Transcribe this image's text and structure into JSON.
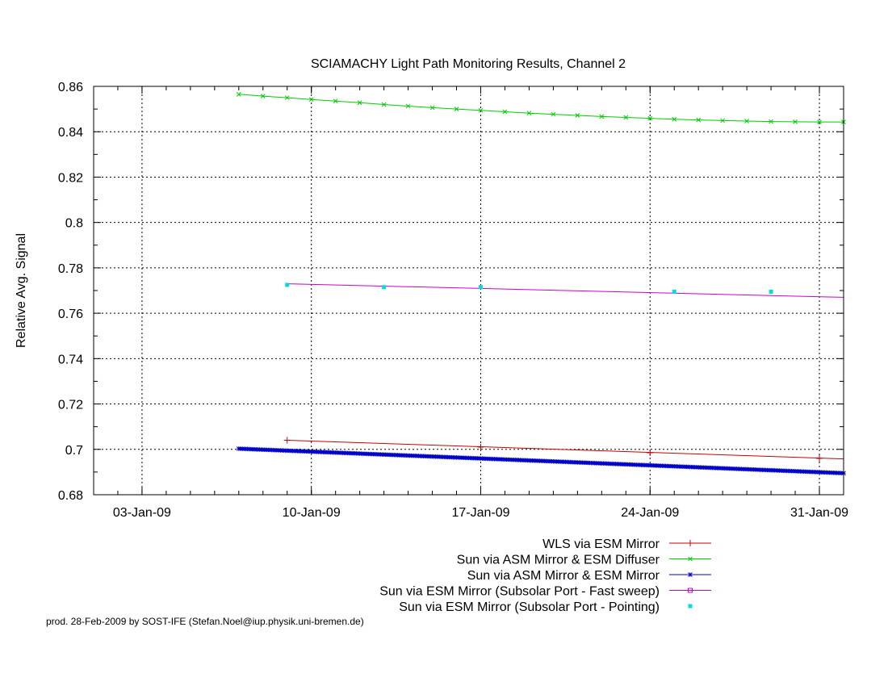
{
  "chart_data": {
    "type": "line",
    "title": "SCIAMACHY Light Path Monitoring Results, Channel 2",
    "xlabel": "",
    "ylabel": "Relative Avg. Signal",
    "xlim": [
      "2009-01-01",
      "2009-02-01"
    ],
    "ylim": [
      0.68,
      0.86
    ],
    "x_ticks": [
      {
        "date": "2009-01-03",
        "label": "03-Jan-09"
      },
      {
        "date": "2009-01-10",
        "label": "10-Jan-09"
      },
      {
        "date": "2009-01-17",
        "label": "17-Jan-09"
      },
      {
        "date": "2009-01-24",
        "label": "24-Jan-09"
      },
      {
        "date": "2009-01-31",
        "label": "31-Jan-09"
      }
    ],
    "y_ticks": [
      0.68,
      0.7,
      0.72,
      0.74,
      0.76,
      0.78,
      0.8,
      0.82,
      0.84,
      0.86
    ],
    "y_tick_labels": [
      "0.68",
      "0.7",
      "0.72",
      "0.74",
      "0.76",
      "0.78",
      "0.8",
      "0.82",
      "0.84",
      "0.86"
    ],
    "grid": true,
    "legend_position": "bottom-right",
    "series": [
      {
        "name": "WLS via ESM Mirror",
        "color": "#cc0000",
        "style": "line-with-plus-markers",
        "x": [
          "2009-01-09",
          "2009-01-17",
          "2009-01-24",
          "2009-01-31"
        ],
        "y": [
          0.704,
          0.701,
          0.6985,
          0.696
        ],
        "fit_line": {
          "x": [
            "2009-01-09",
            "2009-02-01"
          ],
          "y": [
            0.704,
            0.6958
          ]
        }
      },
      {
        "name": "Sun via ASM Mirror & ESM Diffuser",
        "color": "#00cc00",
        "style": "line-with-x-markers",
        "x": [
          "2009-01-07",
          "2009-01-08",
          "2009-01-09",
          "2009-01-10",
          "2009-01-11",
          "2009-01-12",
          "2009-01-13",
          "2009-01-14",
          "2009-01-15",
          "2009-01-16",
          "2009-01-17",
          "2009-01-18",
          "2009-01-19",
          "2009-01-20",
          "2009-01-21",
          "2009-01-22",
          "2009-01-23",
          "2009-01-24",
          "2009-01-25",
          "2009-01-26",
          "2009-01-27",
          "2009-01-28",
          "2009-01-29",
          "2009-01-30",
          "2009-01-31",
          "2009-02-01"
        ],
        "y": [
          0.8565,
          0.8557,
          0.855,
          0.8542,
          0.8535,
          0.8528,
          0.852,
          0.8513,
          0.8506,
          0.85,
          0.8494,
          0.8488,
          0.8482,
          0.8477,
          0.8472,
          0.8467,
          0.8463,
          0.8459,
          0.8455,
          0.8452,
          0.8449,
          0.8447,
          0.8445,
          0.8444,
          0.8443,
          0.8443
        ]
      },
      {
        "name": "Sun via ASM Mirror & ESM Mirror",
        "color": "#0000cc",
        "style": "dense-star-markers",
        "x_start": "2009-01-07",
        "x_end": "2009-02-01",
        "y_start": 0.7003,
        "y_end": 0.6895,
        "points_per_day": 14
      },
      {
        "name": "Sun via ESM Mirror (Subsolar Port - Fast sweep)",
        "color": "#cc00cc",
        "style": "line",
        "x": [
          "2009-01-09",
          "2009-02-01"
        ],
        "y": [
          0.773,
          0.767
        ]
      },
      {
        "name": "Sun via ESM Mirror (Subsolar Port - Pointing)",
        "color": "#00dddd",
        "style": "square-points",
        "x": [
          "2009-01-09",
          "2009-01-13",
          "2009-01-17",
          "2009-01-25",
          "2009-01-29"
        ],
        "y": [
          0.7725,
          0.7715,
          0.7715,
          0.7695,
          0.7695
        ]
      }
    ]
  },
  "footer": "prod. 28-Feb-2009 by SOST-IFE (Stefan.Noel@iup.physik.uni-bremen.de)"
}
